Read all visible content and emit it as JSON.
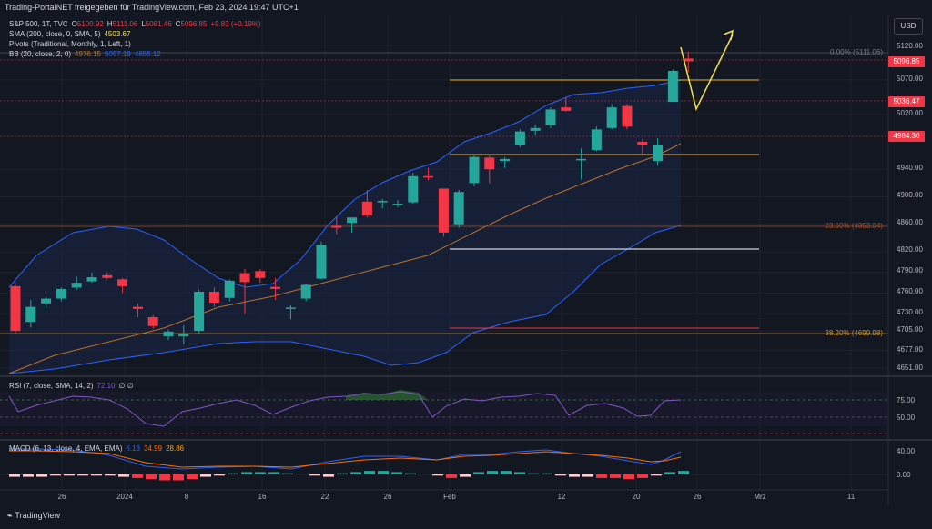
{
  "window": {
    "title": "Trading-PortalNET freigegeben für TradingView.com, Feb 23, 2024 19:47 UTC+1"
  },
  "legend": {
    "main": {
      "symbol": "S&P 500, 1T, TVC",
      "o_label": "O",
      "o": "5100.92",
      "h_label": "H",
      "h": "5111.06",
      "l_label": "L",
      "l": "5081.46",
      "c_label": "C",
      "c": "5096.85",
      "chg": "+9.83 (+0.19%)"
    },
    "sma": {
      "label": "SMA (200, close, 0, SMA, 5)",
      "value": "4503.67"
    },
    "pivots": {
      "label": "Pivots (Traditional, Monthly, 1, Left, 1)"
    },
    "bb": {
      "label": "BB (20, close, 2, 0)",
      "basis": "4976.15",
      "upper": "5097.19",
      "lower": "4855.12"
    },
    "rsi": {
      "label": "RSI (7, close, SMA, 14, 2)",
      "value": "72.10",
      "extra": "∅ ∅"
    },
    "macd": {
      "label": "MACD (6, 13, close, 4, EMA, EMA)",
      "macd": "6.13",
      "signal": "34.99",
      "hist": "28.86"
    }
  },
  "currency_button": "USD",
  "price_axis": {
    "ticks": [
      "5120.00",
      "5070.00",
      "5020.00",
      "4940.00",
      "4900.00",
      "4860.00",
      "4820.00",
      "4790.00",
      "4760.00",
      "4730.00",
      "4705.00",
      "4677.00",
      "4651.00"
    ]
  },
  "price_labels": [
    {
      "text": "5096.85",
      "color": "#f23645"
    },
    {
      "text": "5036.47",
      "color": "#f23645"
    },
    {
      "text": "4984.30",
      "color": "#f23645"
    }
  ],
  "fib_labels": [
    "0.00% (5111.06)",
    "23.60% (4853.04)",
    "38.20% (4699.98)"
  ],
  "rsi_axis": [
    "75.00",
    "50.00"
  ],
  "macd_axis": [
    "40.00",
    "0.00"
  ],
  "time_axis": [
    "26",
    "2024",
    "8",
    "16",
    "22",
    "26",
    "Feb",
    "12",
    "20",
    "26",
    "Mrz",
    "11"
  ],
  "footer": {
    "brand": "TradingView"
  },
  "colors": {
    "up": "#26a69a",
    "down": "#f23645",
    "bb": "#2962ff",
    "sma": "#b8712c",
    "pivot": "#c8922a",
    "arrow": "#f5e14a"
  },
  "chart_data": {
    "type": "candlestick",
    "candles": [
      {
        "o": 4770,
        "h": 4775,
        "l": 4700,
        "c": 4705
      },
      {
        "o": 4718,
        "h": 4750,
        "l": 4710,
        "c": 4740
      },
      {
        "o": 4745,
        "h": 4755,
        "l": 4738,
        "c": 4752
      },
      {
        "o": 4752,
        "h": 4768,
        "l": 4748,
        "c": 4766
      },
      {
        "o": 4768,
        "h": 4784,
        "l": 4765,
        "c": 4775
      },
      {
        "o": 4777,
        "h": 4790,
        "l": 4775,
        "c": 4783
      },
      {
        "o": 4786,
        "h": 4790,
        "l": 4780,
        "c": 4782
      },
      {
        "o": 4780,
        "h": 4782,
        "l": 4760,
        "c": 4770
      },
      {
        "o": 4740,
        "h": 4745,
        "l": 4725,
        "c": 4737
      },
      {
        "o": 4725,
        "h": 4728,
        "l": 4708,
        "c": 4712
      },
      {
        "o": 4697,
        "h": 4707,
        "l": 4692,
        "c": 4704
      },
      {
        "o": 4697,
        "h": 4713,
        "l": 4685,
        "c": 4700
      },
      {
        "o": 4705,
        "h": 4765,
        "l": 4702,
        "c": 4762
      },
      {
        "o": 4762,
        "h": 4768,
        "l": 4740,
        "c": 4746
      },
      {
        "o": 4753,
        "h": 4780,
        "l": 4748,
        "c": 4778
      },
      {
        "o": 4789,
        "h": 4795,
        "l": 4730,
        "c": 4776
      },
      {
        "o": 4792,
        "h": 4795,
        "l": 4775,
        "c": 4782
      },
      {
        "o": 4769,
        "h": 4782,
        "l": 4750,
        "c": 4766
      },
      {
        "o": 4739,
        "h": 4742,
        "l": 4722,
        "c": 4739
      },
      {
        "o": 4752,
        "h": 4773,
        "l": 4748,
        "c": 4772
      },
      {
        "o": 4781,
        "h": 4835,
        "l": 4780,
        "c": 4830
      },
      {
        "o": 4858,
        "h": 4870,
        "l": 4846,
        "c": 4855
      },
      {
        "o": 4862,
        "h": 4866,
        "l": 4848,
        "c": 4870
      },
      {
        "o": 4893,
        "h": 4910,
        "l": 4870,
        "c": 4873
      },
      {
        "o": 4892,
        "h": 4897,
        "l": 4883,
        "c": 4894
      },
      {
        "o": 4888,
        "h": 4895,
        "l": 4885,
        "c": 4890
      },
      {
        "o": 4892,
        "h": 4935,
        "l": 4890,
        "c": 4930
      },
      {
        "o": 4930,
        "h": 4942,
        "l": 4924,
        "c": 4928
      },
      {
        "o": 4912,
        "h": 4912,
        "l": 4842,
        "c": 4848
      },
      {
        "o": 4860,
        "h": 4910,
        "l": 4855,
        "c": 4907
      },
      {
        "o": 4920,
        "h": 4960,
        "l": 4915,
        "c": 4958
      },
      {
        "o": 4957,
        "h": 4960,
        "l": 4920,
        "c": 4940
      },
      {
        "o": 4952,
        "h": 4958,
        "l": 4942,
        "c": 4955
      },
      {
        "o": 4975,
        "h": 4998,
        "l": 4972,
        "c": 4995
      },
      {
        "o": 4996,
        "h": 5005,
        "l": 4990,
        "c": 5000
      },
      {
        "o": 5004,
        "h": 5030,
        "l": 5000,
        "c": 5027
      },
      {
        "o": 5030,
        "h": 5045,
        "l": 5024,
        "c": 5025
      },
      {
        "o": 4955,
        "h": 4970,
        "l": 4925,
        "c": 4955
      },
      {
        "o": 4968,
        "h": 5002,
        "l": 4966,
        "c": 4998
      },
      {
        "o": 5000,
        "h": 5035,
        "l": 4998,
        "c": 5030
      },
      {
        "o": 5032,
        "h": 5035,
        "l": 4998,
        "c": 5002
      },
      {
        "o": 4980,
        "h": 4984,
        "l": 4960,
        "c": 4975
      },
      {
        "o": 4952,
        "h": 4985,
        "l": 4945,
        "c": 4975
      },
      {
        "o": 5038,
        "h": 5085,
        "l": 5038,
        "c": 5083
      },
      {
        "o": 5101,
        "h": 5111,
        "l": 5081,
        "c": 5097
      }
    ],
    "fib_levels": [
      {
        "pct": "0.00%",
        "price": 5111.06
      },
      {
        "pct": "23.60%",
        "price": 4853.04
      },
      {
        "pct": "38.20%",
        "price": 4699.98
      }
    ],
    "pivot_levels": [
      5062,
      4957,
      4832,
      4715
    ],
    "last_price": 5096.85
  }
}
